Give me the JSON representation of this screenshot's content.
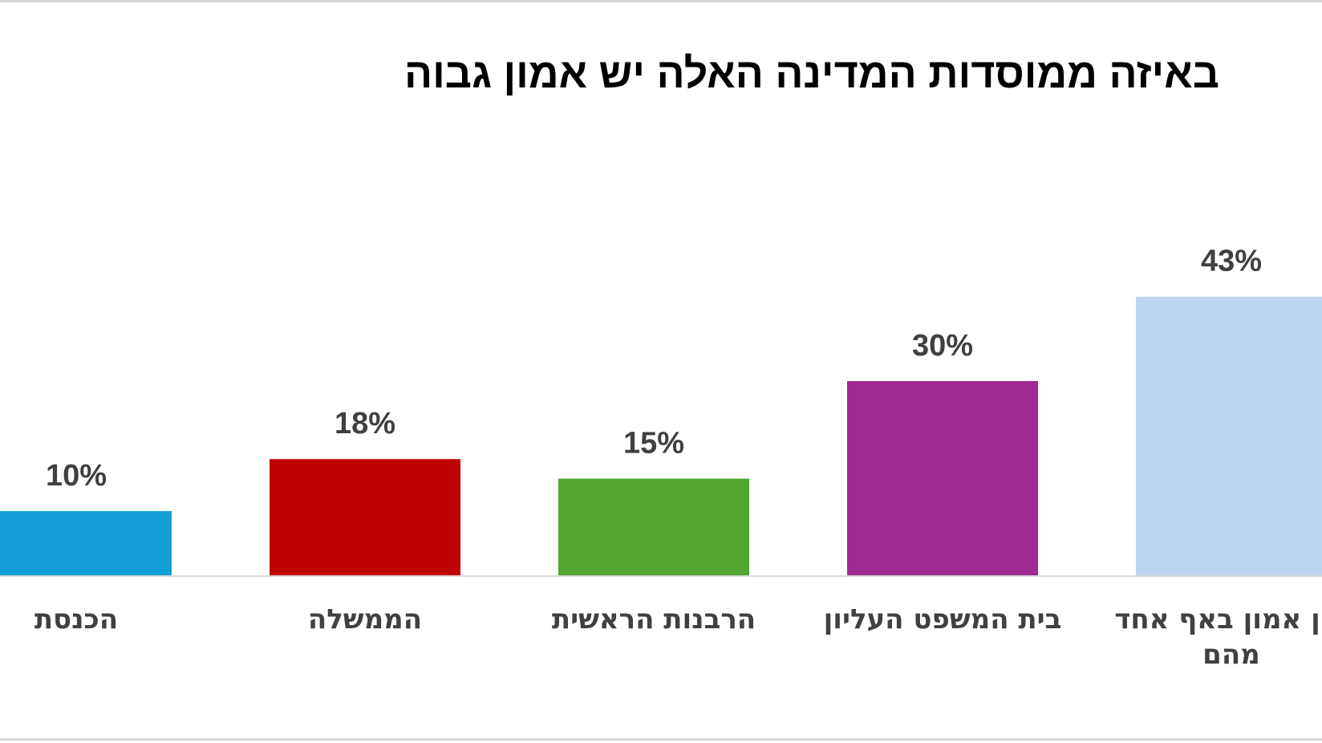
{
  "chart_data": {
    "type": "bar",
    "title": "באיזה ממוסדות המדינה האלה יש אמון גבוה",
    "categories": [
      "הכנסת",
      "הממשלה",
      "הרבנות הראשית",
      "בית המשפט העליון",
      "אין אמון באף אחד מהם"
    ],
    "category_lines": [
      [
        "הכנסת"
      ],
      [
        "הממשלה"
      ],
      [
        "הרבנות הראשית"
      ],
      [
        "בית המשפט העליון"
      ],
      [
        "אין אמון באף אחד",
        "מהם"
      ]
    ],
    "values": [
      10,
      18,
      15,
      30,
      43
    ],
    "data_labels": [
      "10%",
      "18%",
      "15%",
      "30%",
      "43%"
    ],
    "colors": [
      "#129ed6",
      "#be0101",
      "#52a630",
      "#9e2a92",
      "#bcd6ef"
    ],
    "ylim": [
      0,
      50
    ],
    "grid": false,
    "legend": "none",
    "xlabel": "",
    "ylabel": ""
  }
}
